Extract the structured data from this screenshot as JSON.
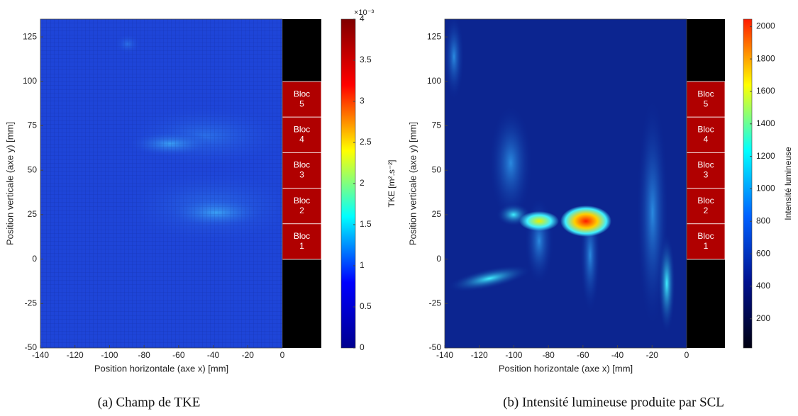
{
  "chart_data": [
    {
      "type": "heatmap",
      "caption": "(a) Champ de TKE",
      "xlabel": "Position horizontale (axe x) [mm]",
      "ylabel": "Position verticale (axe y) [mm]",
      "xlim": [
        -140,
        0
      ],
      "xticks": [
        -140,
        -120,
        -100,
        -80,
        -60,
        -40,
        -20,
        0
      ],
      "ylim": [
        -50,
        135
      ],
      "yticks": [
        -50,
        -25,
        0,
        25,
        50,
        75,
        100,
        125
      ],
      "blocks": [
        {
          "label": "Bloc",
          "index": 5
        },
        {
          "label": "Bloc",
          "index": 4
        },
        {
          "label": "Bloc",
          "index": 3
        },
        {
          "label": "Bloc",
          "index": 2
        },
        {
          "label": "Bloc",
          "index": 1
        }
      ],
      "colormap": "jet",
      "colorbar_label": "TKE [m².s⁻²]",
      "colorbar_exponent": "×10⁻³",
      "clim": [
        0,
        4
      ],
      "cticks": [
        0,
        0.5,
        1,
        1.5,
        2,
        2.5,
        3,
        3.5,
        4
      ]
    },
    {
      "type": "heatmap",
      "caption": "(b) Intensité lumineuse produite par SCL",
      "xlabel": "Position horizontale (axe x) [mm]",
      "ylabel": "Position verticale (axe y) [mm]",
      "xlim": [
        -140,
        0
      ],
      "xticks": [
        -140,
        -120,
        -100,
        -80,
        -60,
        -40,
        -20,
        0
      ],
      "ylim": [
        -50,
        135
      ],
      "yticks": [
        -50,
        -25,
        0,
        25,
        50,
        75,
        100,
        125
      ],
      "blocks": [
        {
          "label": "Bloc",
          "index": 5
        },
        {
          "label": "Bloc",
          "index": 4
        },
        {
          "label": "Bloc",
          "index": 3
        },
        {
          "label": "Bloc",
          "index": 2
        },
        {
          "label": "Bloc",
          "index": 1
        }
      ],
      "colormap": "dark-jet",
      "colorbar_label": "Intensité lumineuse",
      "clim": [
        20,
        2045
      ],
      "cticks": [
        200,
        400,
        600,
        800,
        1000,
        1200,
        1400,
        1600,
        1800,
        2000
      ]
    }
  ]
}
